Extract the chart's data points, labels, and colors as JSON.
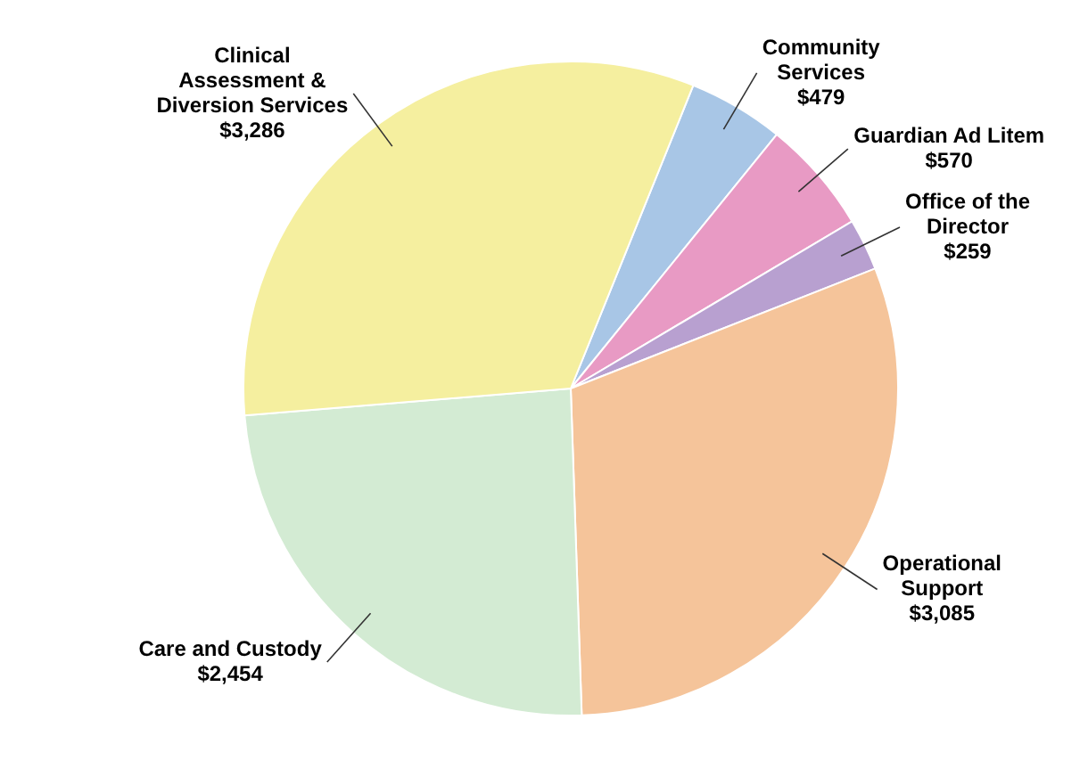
{
  "chart_data": {
    "type": "pie",
    "categories": [
      "Community Services",
      "Guardian Ad Litem",
      "Office of the Director",
      "Operational Support",
      "Care and Custody",
      "Clinical Assessment & Diversion Services"
    ],
    "values": [
      479,
      570,
      259,
      3085,
      2454,
      3286
    ],
    "value_labels": [
      "$479",
      "$570",
      "$259",
      "$3,085",
      "$2,454",
      "$3,286"
    ],
    "colors": [
      "#a8c6e6",
      "#e89ac4",
      "#b8a0d0",
      "#f5c49a",
      "#d3ebd3",
      "#f5ef9f"
    ],
    "legend": false
  }
}
